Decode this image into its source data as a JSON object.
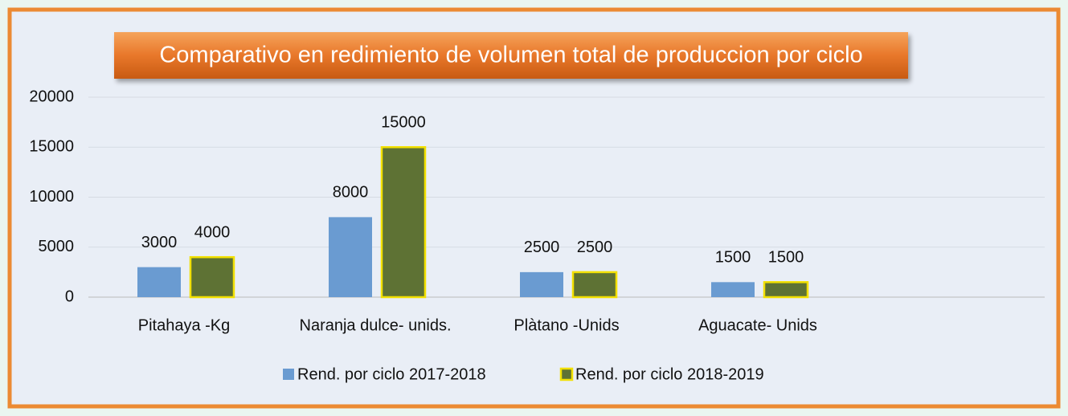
{
  "chart_data": {
    "type": "bar",
    "title": "Comparativo en redimiento de volumen total de produccion por ciclo",
    "categories": [
      "Pitahaya -Kg",
      "Naranja dulce- unids.",
      "Plàtano -Unids",
      "Aguacate- Unids"
    ],
    "series": [
      {
        "name": "Rend. por ciclo 2017-2018",
        "color": "#6a9bd1",
        "values": [
          3000,
          8000,
          2500,
          1500
        ]
      },
      {
        "name": "Rend. por ciclo 2018-2019",
        "color": "#5e7234",
        "values": [
          4000,
          15000,
          2500,
          1500
        ]
      }
    ],
    "ylim": [
      0,
      20000
    ],
    "yticks": [
      0,
      5000,
      10000,
      15000,
      20000
    ],
    "grid": true,
    "legend": "bottom"
  }
}
